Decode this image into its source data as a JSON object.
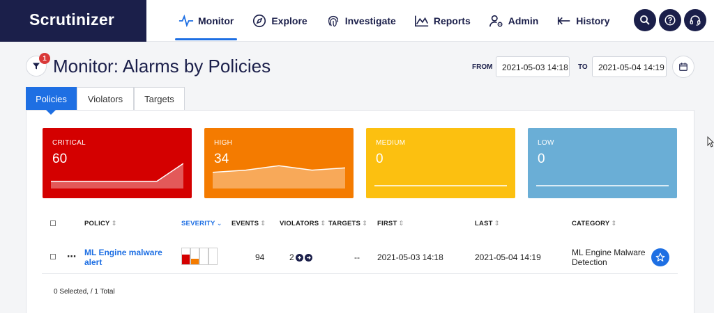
{
  "app": {
    "logo": "Scrutinizer"
  },
  "nav": {
    "items": [
      {
        "label": "Monitor",
        "icon": "pulse-icon",
        "active": true
      },
      {
        "label": "Explore",
        "icon": "compass-icon"
      },
      {
        "label": "Investigate",
        "icon": "fingerprint-icon"
      },
      {
        "label": "Reports",
        "icon": "area-chart-icon"
      },
      {
        "label": "Admin",
        "icon": "user-gear-icon"
      },
      {
        "label": "History",
        "icon": "arrow-left-icon"
      }
    ],
    "actions": [
      "search-icon",
      "help-icon",
      "headset-icon"
    ]
  },
  "header": {
    "filter_count": "1",
    "title": "Monitor: Alarms by Policies",
    "from_label": "FROM",
    "from_value": "2021-05-03 14:18",
    "to_label": "TO",
    "to_value": "2021-05-04 14:19"
  },
  "tabs": [
    {
      "label": "Policies",
      "active": true
    },
    {
      "label": "Violators"
    },
    {
      "label": "Targets"
    }
  ],
  "severity_cards": [
    {
      "label": "CRITICAL",
      "value": "60",
      "color": "#d40000",
      "trend": [
        2,
        2,
        2,
        2,
        2,
        10
      ]
    },
    {
      "label": "HIGH",
      "value": "34",
      "color": "#f47b00",
      "trend": [
        6,
        7,
        9,
        7,
        8
      ]
    },
    {
      "label": "MEDIUM",
      "value": "0",
      "color": "#fcc010",
      "trend": [
        0,
        0
      ]
    },
    {
      "label": "LOW",
      "value": "0",
      "color": "#6aaed6",
      "trend": [
        0,
        0
      ]
    }
  ],
  "table": {
    "columns": {
      "policy": "POLICY",
      "severity": "SEVERITY",
      "events": "EVENTS",
      "violators": "VIOLATORS",
      "targets": "TARGETS",
      "first": "FIRST",
      "last": "LAST",
      "category": "CATEGORY"
    },
    "rows": [
      {
        "policy": "ML Engine malware alert",
        "severity_fill": {
          "critical": 0.6,
          "high": 0.34
        },
        "events": "94",
        "violators": "2",
        "targets": "--",
        "first": "2021-05-03 14:18",
        "last": "2021-05-04 14:19",
        "category": "ML Engine Malware Detection"
      }
    ],
    "footer": "0 Selected, / 1 Total"
  }
}
